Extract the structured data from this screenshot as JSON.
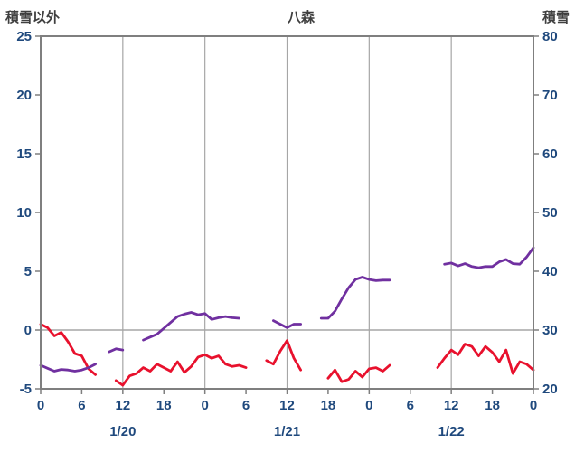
{
  "chart_data": {
    "type": "line",
    "title": "八森",
    "left_axis": {
      "label": "積雪以外",
      "min": -5,
      "max": 25,
      "ticks": [
        25,
        20,
        15,
        10,
        5,
        0,
        -5
      ]
    },
    "right_axis": {
      "label": "積雪",
      "min": 20,
      "max": 80,
      "ticks": [
        80,
        70,
        60,
        50,
        40,
        30,
        20
      ]
    },
    "x_axis": {
      "min_hour": 0,
      "max_hour": 72,
      "tick_interval_hours": 6,
      "tick_labels": [
        "0",
        "6",
        "12",
        "18",
        "0",
        "6",
        "12",
        "18",
        "0",
        "6",
        "12",
        "18",
        "0"
      ],
      "date_labels": [
        {
          "text": "1/20",
          "hour": 12
        },
        {
          "text": "1/21",
          "hour": 36
        },
        {
          "text": "1/22",
          "hour": 60
        }
      ]
    },
    "gridlines": {
      "vertical_hours": [
        12,
        24,
        36,
        48,
        60
      ],
      "horizontal_left_values": [
        0
      ]
    },
    "series": [
      {
        "id": "red",
        "axis": "left",
        "color": "#e8112d",
        "values": [
          0.5,
          0.2,
          -0.5,
          -0.2,
          -1.0,
          -2.0,
          -2.2,
          -3.3,
          -3.8,
          null,
          null,
          -4.3,
          -4.7,
          -3.9,
          -3.7,
          -3.2,
          -3.5,
          -2.9,
          -3.2,
          -3.5,
          -2.7,
          -3.6,
          -3.1,
          -2.3,
          -2.1,
          -2.4,
          -2.2,
          -2.9,
          -3.1,
          -3.0,
          -3.2,
          null,
          null,
          -2.6,
          -2.9,
          -1.8,
          -0.9,
          -2.4,
          -3.4,
          null,
          null,
          null,
          -4.1,
          -3.4,
          -4.4,
          -4.2,
          -3.5,
          -4.0,
          -3.3,
          -3.2,
          -3.5,
          -3.0,
          null,
          null,
          null,
          null,
          null,
          null,
          -3.2,
          -2.4,
          -1.7,
          -2.1,
          -1.2,
          -1.4,
          -2.2,
          -1.4,
          -1.9,
          -2.7,
          -1.7,
          -3.7,
          -2.7,
          -2.9,
          -3.4
        ]
      },
      {
        "id": "purple",
        "axis": "right",
        "color": "#7030a0",
        "values": [
          24.0,
          23.5,
          23.0,
          23.3,
          23.2,
          23.0,
          23.2,
          23.6,
          24.2,
          null,
          26.3,
          26.8,
          26.6,
          null,
          null,
          28.3,
          28.8,
          29.3,
          30.3,
          31.3,
          32.3,
          32.7,
          33.0,
          32.6,
          32.8,
          31.8,
          32.1,
          32.3,
          32.1,
          32.0,
          null,
          null,
          null,
          null,
          31.6,
          31.0,
          30.4,
          31.0,
          31.0,
          null,
          null,
          32.0,
          32.0,
          33.2,
          35.3,
          37.2,
          38.6,
          39.0,
          38.6,
          38.4,
          38.5,
          38.5,
          null,
          null,
          null,
          null,
          null,
          null,
          null,
          41.2,
          41.4,
          40.9,
          41.3,
          40.8,
          40.6,
          40.8,
          40.8,
          41.6,
          42.0,
          41.3,
          41.2,
          42.4,
          44.0
        ]
      }
    ],
    "colors": {
      "border": "#7f7f7f",
      "grid": "#a6a6a6",
      "tick_label": "#1f497d",
      "title": "#3f3f3f"
    }
  }
}
